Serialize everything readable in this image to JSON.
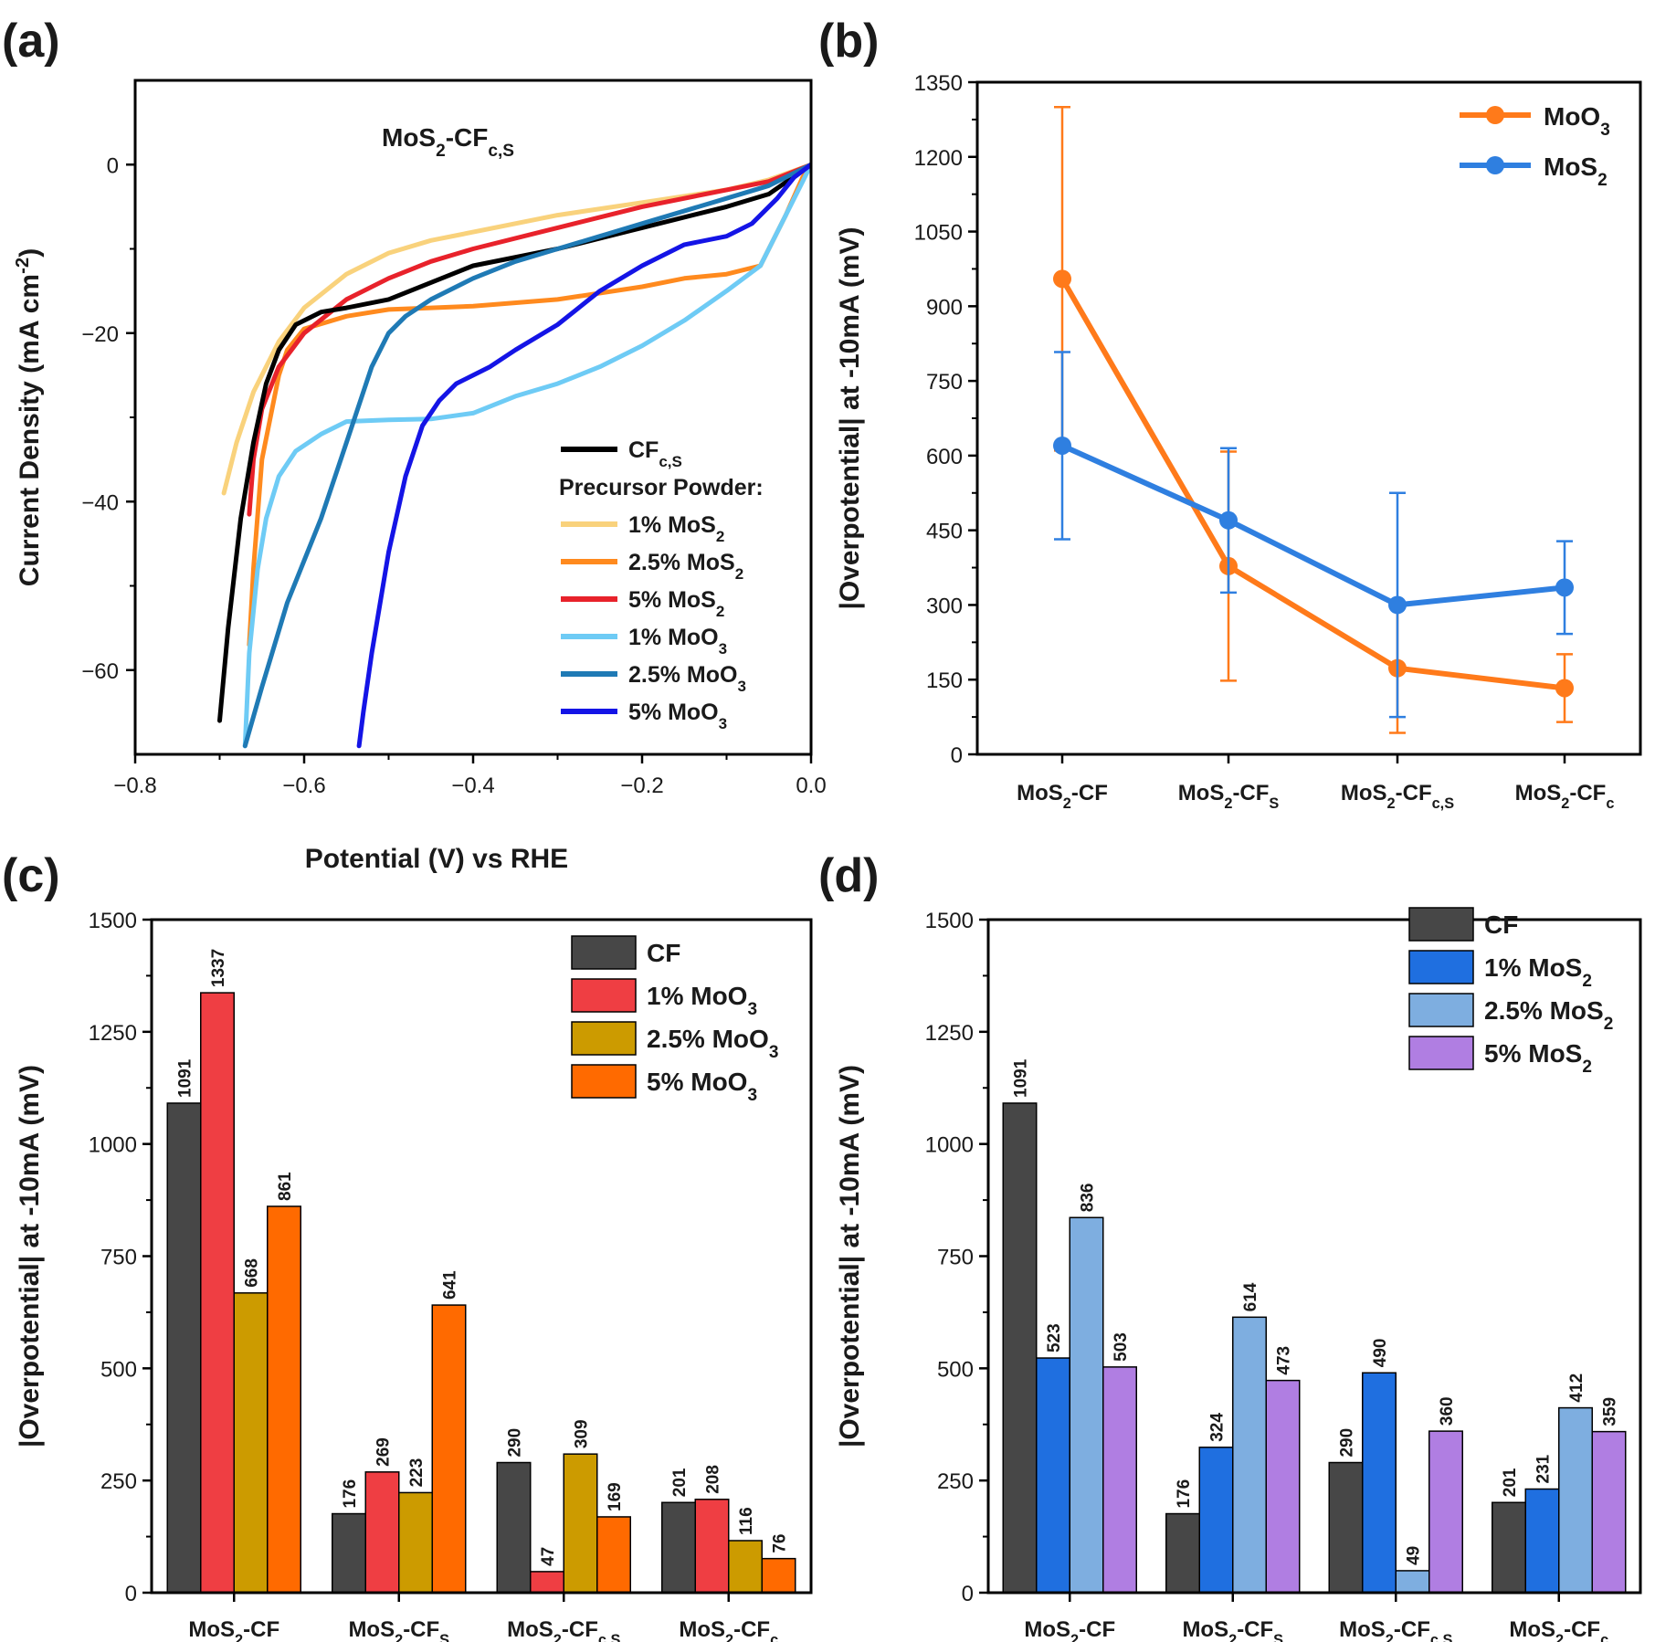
{
  "panels": {
    "a": {
      "label": "(a)"
    },
    "b": {
      "label": "(b)"
    },
    "c": {
      "label": "(c)"
    },
    "d": {
      "label": "(d)"
    }
  },
  "colors": {
    "cf": "#474747",
    "mos2_1": "#1f6fe0",
    "mos2_25": "#7eaee0",
    "mos2_5": "#b07ee2",
    "moo3_1": "#ef3e43",
    "moo3_25": "#cc9b00",
    "moo3_5": "#ff6a00",
    "line_moo3": "#ff7a1a",
    "line_mos2": "#2f7fe0",
    "lsv_cf": "#000000",
    "lsv_mos2_1": "#f9d27c",
    "lsv_mos2_25": "#ff8a1e",
    "lsv_mos2_5": "#e8222b",
    "lsv_moo3_1": "#6ecbf5",
    "lsv_moo3_25": "#1f7ab5",
    "lsv_moo3_5": "#1414e6"
  },
  "chart_data": [
    {
      "panel": "a",
      "type": "line",
      "annotation": {
        "main": "MoS",
        "sub": "2",
        "main2": "-CF",
        "sub2": "c,S"
      },
      "xlabel": "Potential (V) vs RHE",
      "ylabel": "Current Density (mA cm",
      "ylabel_sup": "-2",
      "ylabel_end": ")",
      "xlim": [
        -0.8,
        0.0
      ],
      "ylim": [
        -70,
        10
      ],
      "xticks": [
        "−0.8",
        "−0.6",
        "−0.4",
        "−0.2",
        "0.0"
      ],
      "yticks": [
        "0",
        "−20",
        "−40",
        "−60"
      ],
      "legend_heading": "Precursor Powder:",
      "legend": [
        {
          "main": "CF",
          "sub": "c,S",
          "tail": ""
        },
        {
          "main": "1% MoS",
          "sub": "2",
          "tail": ""
        },
        {
          "main": "2.5% MoS",
          "sub": "2",
          "tail": ""
        },
        {
          "main": "5% MoS",
          "sub": "2",
          "tail": ""
        },
        {
          "main": "1% MoO",
          "sub": "3",
          "tail": ""
        },
        {
          "main": "2.5% MoO",
          "sub": "3",
          "tail": ""
        },
        {
          "main": "5% MoO",
          "sub": "3",
          "tail": ""
        }
      ],
      "series": [
        {
          "key": "lsv_mos2_1",
          "x": [
            -0.695,
            -0.68,
            -0.66,
            -0.63,
            -0.6,
            -0.55,
            -0.5,
            -0.45,
            -0.4,
            -0.3,
            -0.2,
            -0.1,
            -0.05,
            0.0
          ],
          "y": [
            -39,
            -33,
            -27,
            -21,
            -17,
            -13,
            -10.5,
            -9,
            -8,
            -6,
            -4.5,
            -3,
            -1.8,
            0
          ]
        },
        {
          "key": "lsv_mos2_25",
          "x": [
            -0.665,
            -0.66,
            -0.65,
            -0.63,
            -0.62,
            -0.6,
            -0.55,
            -0.5,
            -0.45,
            -0.4,
            -0.3,
            -0.2,
            -0.15,
            -0.1,
            -0.06,
            -0.03,
            -0.01,
            0.0
          ],
          "y": [
            -57,
            -48,
            -35,
            -25,
            -22,
            -19.5,
            -18,
            -17.2,
            -17,
            -16.8,
            -16,
            -14.5,
            -13.5,
            -13,
            -12,
            -6,
            -1.5,
            0
          ]
        },
        {
          "key": "lsv_mos2_5",
          "x": [
            -0.665,
            -0.66,
            -0.65,
            -0.63,
            -0.6,
            -0.55,
            -0.5,
            -0.45,
            -0.4,
            -0.3,
            -0.2,
            -0.1,
            -0.05,
            0.0
          ],
          "y": [
            -41.5,
            -35,
            -29,
            -24,
            -20,
            -16,
            -13.5,
            -11.5,
            -10,
            -7.5,
            -5,
            -3,
            -2,
            0
          ]
        },
        {
          "key": "lsv_cf",
          "x": [
            -0.7,
            -0.69,
            -0.675,
            -0.66,
            -0.645,
            -0.63,
            -0.61,
            -0.58,
            -0.55,
            -0.5,
            -0.45,
            -0.4,
            -0.3,
            -0.2,
            -0.1,
            -0.05,
            0.0
          ],
          "y": [
            -66,
            -55,
            -42,
            -33,
            -26,
            -22,
            -19,
            -17.5,
            -17,
            -16,
            -14,
            -12,
            -10,
            -7.5,
            -5,
            -3.5,
            0
          ]
        },
        {
          "key": "lsv_moo3_1",
          "x": [
            -0.67,
            -0.665,
            -0.655,
            -0.645,
            -0.63,
            -0.61,
            -0.58,
            -0.55,
            -0.5,
            -0.45,
            -0.4,
            -0.35,
            -0.3,
            -0.25,
            -0.2,
            -0.15,
            -0.1,
            -0.06,
            -0.03,
            -0.01,
            0.0
          ],
          "y": [
            -69,
            -58,
            -48,
            -42,
            -37,
            -34,
            -32,
            -30.5,
            -30.3,
            -30.2,
            -29.5,
            -27.5,
            -26,
            -24,
            -21.5,
            -18.5,
            -15,
            -12,
            -6,
            -2,
            0
          ]
        },
        {
          "key": "lsv_moo3_25",
          "x": [
            -0.67,
            -0.65,
            -0.62,
            -0.58,
            -0.55,
            -0.52,
            -0.5,
            -0.48,
            -0.45,
            -0.4,
            -0.35,
            -0.3,
            -0.25,
            -0.2,
            -0.1,
            -0.05,
            0.0
          ],
          "y": [
            -69,
            -62,
            -52,
            -42,
            -33,
            -24,
            -20,
            -18,
            -16,
            -13.5,
            -11.5,
            -10,
            -8.5,
            -7,
            -4,
            -2.5,
            0
          ]
        },
        {
          "key": "lsv_moo3_5",
          "x": [
            -0.535,
            -0.53,
            -0.52,
            -0.5,
            -0.48,
            -0.46,
            -0.44,
            -0.42,
            -0.4,
            -0.38,
            -0.35,
            -0.3,
            -0.25,
            -0.2,
            -0.15,
            -0.1,
            -0.07,
            -0.04,
            -0.02,
            0.0
          ],
          "y": [
            -69,
            -65,
            -58,
            -46,
            -37,
            -31,
            -28,
            -26,
            -25,
            -24,
            -22,
            -19,
            -15,
            -12,
            -9.5,
            -8.5,
            -7,
            -4,
            -1.5,
            0
          ]
        }
      ]
    },
    {
      "panel": "b",
      "type": "line",
      "ylabel": "|Overpotential| at -10mA (mV)",
      "ylim": [
        0,
        1350
      ],
      "yticks": [
        0,
        150,
        300,
        450,
        600,
        750,
        900,
        1050,
        1200,
        1350
      ],
      "categories": [
        {
          "main": "MoS",
          "sub": "2",
          "tail": "-CF",
          "sub2": ""
        },
        {
          "main": "MoS",
          "sub": "2",
          "tail": "-CF",
          "sub2": "S"
        },
        {
          "main": "MoS",
          "sub": "2",
          "tail": "-CF",
          "sub2": "c,S"
        },
        {
          "main": "MoS",
          "sub": "2",
          "tail": "-CF",
          "sub2": "c"
        }
      ],
      "series": [
        {
          "name": "MoO",
          "name_sub": "3",
          "key": "line_moo3",
          "values": [
            955,
            378,
            173,
            133
          ],
          "err": [
            345,
            230,
            130,
            68
          ]
        },
        {
          "name": "MoS",
          "name_sub": "2",
          "key": "line_mos2",
          "values": [
            620,
            470,
            300,
            335
          ],
          "err": [
            188,
            145,
            225,
            93
          ]
        }
      ]
    },
    {
      "panel": "c",
      "type": "bar",
      "ylabel": "|Overpotential| at -10mA (mV)",
      "ylim": [
        0,
        1500
      ],
      "yticks": [
        0,
        250,
        500,
        750,
        1000,
        1250,
        1500
      ],
      "categories": [
        {
          "main": "MoS",
          "sub": "2",
          "tail": "-CF",
          "sub2": ""
        },
        {
          "main": "MoS",
          "sub": "2",
          "tail": "-CF",
          "sub2": "S"
        },
        {
          "main": "MoS",
          "sub": "2",
          "tail": "-CF",
          "sub2": "c,S"
        },
        {
          "main": "MoS",
          "sub": "2",
          "tail": "-CF",
          "sub2": "c"
        }
      ],
      "series": [
        {
          "name": "CF",
          "name_sub": "",
          "key": "cf",
          "values": [
            1091,
            176,
            290,
            201
          ]
        },
        {
          "name": "1% MoO",
          "name_sub": "3",
          "key": "moo3_1",
          "values": [
            1337,
            269,
            47,
            208
          ]
        },
        {
          "name": "2.5% MoO",
          "name_sub": "3",
          "key": "moo3_25",
          "values": [
            668,
            223,
            309,
            116
          ]
        },
        {
          "name": "5% MoO",
          "name_sub": "3",
          "key": "moo3_5",
          "values": [
            861,
            641,
            169,
            76
          ]
        }
      ]
    },
    {
      "panel": "d",
      "type": "bar",
      "ylabel": "|Overpotential| at -10mA (mV)",
      "ylim": [
        0,
        1500
      ],
      "yticks": [
        0,
        250,
        500,
        750,
        1000,
        1250,
        1500
      ],
      "categories": [
        {
          "main": "MoS",
          "sub": "2",
          "tail": "-CF",
          "sub2": ""
        },
        {
          "main": "MoS",
          "sub": "2",
          "tail": "-CF",
          "sub2": "S"
        },
        {
          "main": "MoS",
          "sub": "2",
          "tail": "-CF",
          "sub2": "c,S"
        },
        {
          "main": "MoS",
          "sub": "2",
          "tail": "-CF",
          "sub2": "c"
        }
      ],
      "series": [
        {
          "name": "CF",
          "name_sub": "",
          "key": "cf",
          "values": [
            1091,
            176,
            290,
            201
          ]
        },
        {
          "name": "1% MoS",
          "name_sub": "2",
          "key": "mos2_1",
          "values": [
            523,
            324,
            490,
            231
          ]
        },
        {
          "name": "2.5% MoS",
          "name_sub": "2",
          "key": "mos2_25",
          "values": [
            836,
            614,
            49,
            412
          ]
        },
        {
          "name": "5% MoS",
          "name_sub": "2",
          "key": "mos2_5",
          "values": [
            503,
            473,
            360,
            359
          ]
        }
      ]
    }
  ]
}
